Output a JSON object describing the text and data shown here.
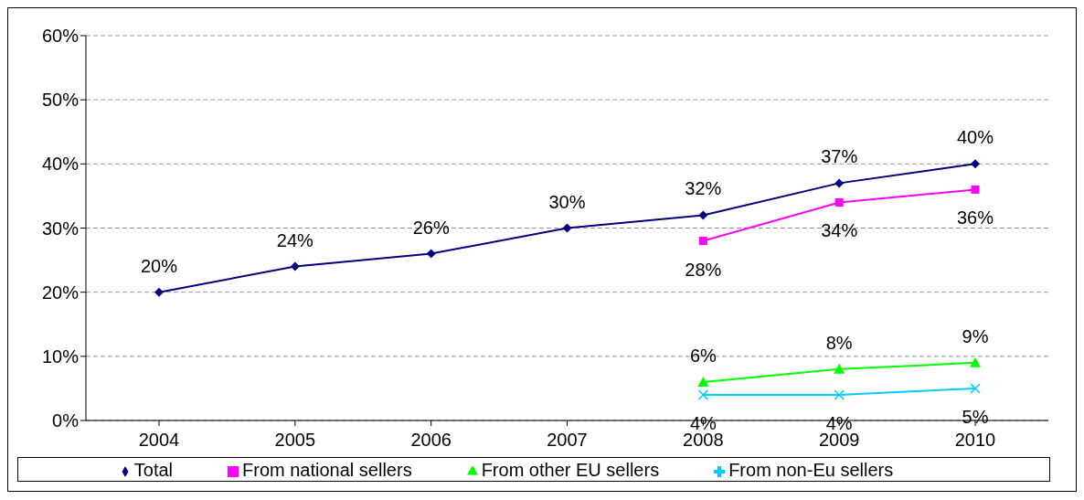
{
  "chart_data": {
    "type": "line",
    "categories": [
      "2004",
      "2005",
      "2006",
      "2007",
      "2008",
      "2009",
      "2010"
    ],
    "series": [
      {
        "name": "Total",
        "color": "#000080",
        "marker": "diamond",
        "values": [
          20,
          24,
          26,
          30,
          32,
          37,
          40
        ],
        "value_labels": [
          "20%",
          "24%",
          "26%",
          "30%",
          "32%",
          "37%",
          "40%"
        ]
      },
      {
        "name": "From national sellers",
        "color": "#ff00ff",
        "marker": "square",
        "values": [
          null,
          null,
          null,
          null,
          28,
          34,
          36
        ],
        "value_labels": [
          null,
          null,
          null,
          null,
          "28%",
          "34%",
          "36%"
        ]
      },
      {
        "name": "From other EU sellers",
        "color": "#00ff00",
        "marker": "triangle",
        "values": [
          null,
          null,
          null,
          null,
          6,
          8,
          9
        ],
        "value_labels": [
          null,
          null,
          null,
          null,
          "6%",
          "8%",
          "9%"
        ]
      },
      {
        "name": "From non-Eu sellers",
        "color": "#00ccff",
        "marker": "cross",
        "values": [
          null,
          null,
          null,
          null,
          4,
          4,
          5
        ],
        "value_labels": [
          null,
          null,
          null,
          null,
          "4%",
          "4%",
          "5%"
        ]
      }
    ],
    "ylim": [
      0,
      60
    ],
    "yticks": [
      {
        "value": 0,
        "label": "0%"
      },
      {
        "value": 10,
        "label": "10%"
      },
      {
        "value": 20,
        "label": "20%"
      },
      {
        "value": 30,
        "label": "30%"
      },
      {
        "value": 40,
        "label": "40%"
      },
      {
        "value": 50,
        "label": "50%"
      },
      {
        "value": 60,
        "label": "60%"
      }
    ],
    "grid": "y",
    "legend": "bottom",
    "line_style": "solid"
  }
}
